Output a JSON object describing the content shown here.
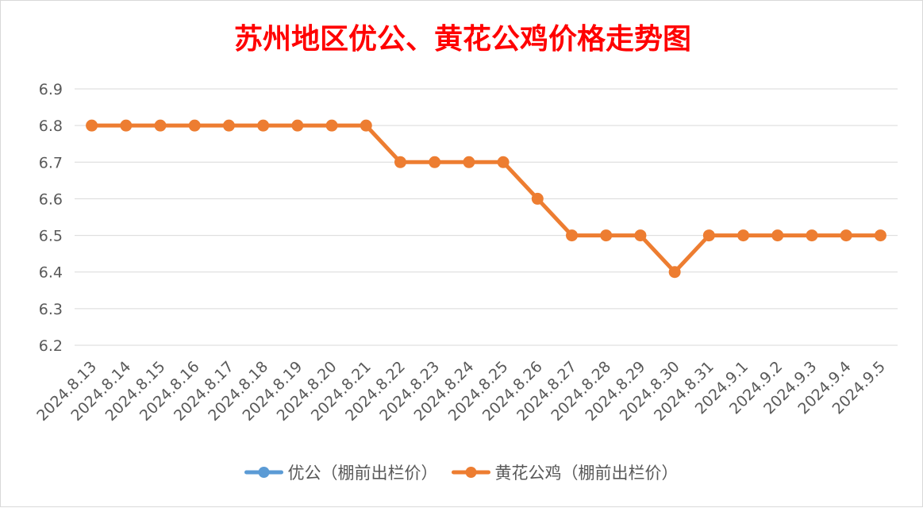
{
  "chart_data": {
    "type": "line",
    "title": "苏州地区优公、黄花公鸡价格走势图",
    "title_color": "#ff0000",
    "categories": [
      "2024.8.13",
      "2024.8.14",
      "2024.8.15",
      "2024.8.16",
      "2024.8.17",
      "2024.8.18",
      "2024.8.19",
      "2024.8.20",
      "2024.8.21",
      "2024.8.22",
      "2024.8.23",
      "2024.8.24",
      "2024.8.25",
      "2024.8.26",
      "2024.8.27",
      "2024.8.28",
      "2024.8.29",
      "2024.8.30",
      "2024.8.31",
      "2024.9.1",
      "2024.9.2",
      "2024.9.3",
      "2024.9.4",
      "2024.9.5"
    ],
    "series": [
      {
        "name": "优公（棚前出栏价）",
        "color": "#5b9bd5",
        "values": [
          null,
          null,
          null,
          null,
          null,
          null,
          null,
          null,
          null,
          null,
          null,
          null,
          null,
          null,
          null,
          null,
          null,
          null,
          null,
          null,
          null,
          null,
          null,
          null
        ]
      },
      {
        "name": "黄花公鸡（棚前出栏价）",
        "color": "#ed7d31",
        "values": [
          6.8,
          6.8,
          6.8,
          6.8,
          6.8,
          6.8,
          6.8,
          6.8,
          6.8,
          6.7,
          6.7,
          6.7,
          6.7,
          6.6,
          6.5,
          6.5,
          6.5,
          6.4,
          6.5,
          6.5,
          6.5,
          6.5,
          6.5,
          6.5
        ]
      }
    ],
    "yticks": [
      "6.2",
      "6.3",
      "6.4",
      "6.5",
      "6.6",
      "6.7",
      "6.8",
      "6.9"
    ],
    "ylim": [
      6.2,
      6.9
    ],
    "xlabel": "",
    "ylabel": "",
    "grid": true,
    "legend_position": "bottom"
  }
}
